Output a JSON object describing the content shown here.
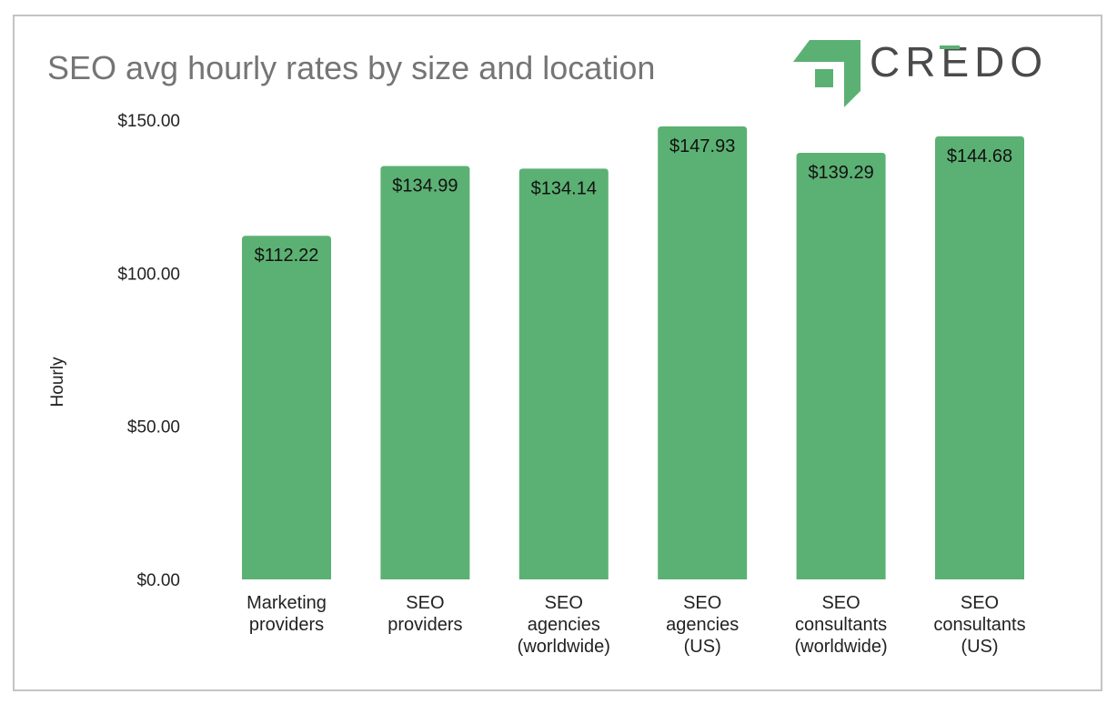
{
  "chart_data": {
    "type": "bar",
    "title": "SEO avg hourly rates by size and location",
    "xlabel": "",
    "ylabel": "Hourly",
    "ylim": [
      0,
      150
    ],
    "yticks": [
      "$0.00",
      "$50.00",
      "$100.00",
      "$150.00"
    ],
    "ytick_values": [
      0,
      50,
      100,
      150
    ],
    "grid": false,
    "categories": [
      [
        "Marketing",
        "providers"
      ],
      [
        "SEO",
        "providers"
      ],
      [
        "SEO",
        "agencies",
        "(worldwide)"
      ],
      [
        "SEO",
        "agencies",
        "(US)"
      ],
      [
        "SEO",
        "consultants",
        "(worldwide)"
      ],
      [
        "SEO",
        "consultants",
        "(US)"
      ]
    ],
    "values": [
      112.22,
      134.99,
      134.14,
      147.93,
      139.29,
      144.68
    ],
    "data_labels": [
      "$112.22",
      "$134.99",
      "$134.14",
      "$147.93",
      "$139.29",
      "$144.68"
    ],
    "bar_color": "#5bb173"
  },
  "logo": {
    "text": "CREDO",
    "color": "#5bb173",
    "text_color": "#4a4a4a"
  }
}
